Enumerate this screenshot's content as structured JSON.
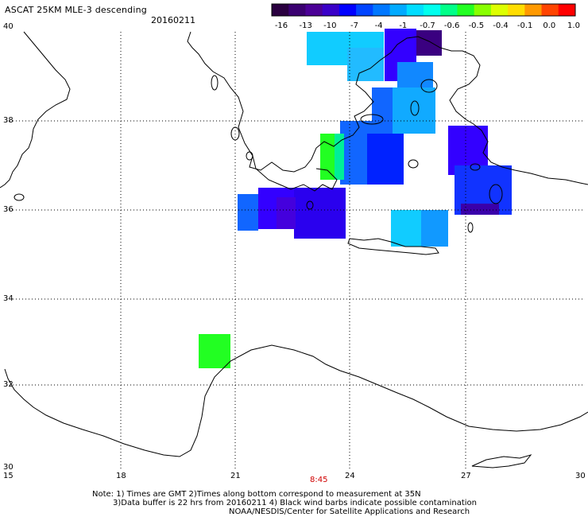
{
  "header": {
    "title": "ASCAT 25KM MLE-3 descending",
    "date": "20160211"
  },
  "colorbar": {
    "labels": [
      "-16",
      "-13",
      "-10",
      "-7",
      "-4",
      "-1",
      "-0.7",
      "-0.6",
      "-0.5",
      "-0.4",
      "-0.1",
      "0.0",
      "1.0"
    ],
    "colors": [
      "#2a0040",
      "#3a0070",
      "#4b0096",
      "#3a00c8",
      "#0000ff",
      "#0044ff",
      "#0077ff",
      "#00aaff",
      "#00ddff",
      "#00ffee",
      "#00ff88",
      "#22ff22",
      "#88ff00",
      "#ddff00",
      "#ffdd00",
      "#ff9900",
      "#ff4400",
      "#ff0000"
    ]
  },
  "axes": {
    "longitudes": [
      "15",
      "18",
      "21",
      "24",
      "27",
      "30"
    ],
    "latitudes": [
      "40",
      "38",
      "36",
      "34",
      "32",
      "30"
    ]
  },
  "time_marker": "8:45",
  "footer": {
    "line1": "Note: 1) Times are GMT 2)Times along bottom correspond to measurement at 35N",
    "line2": "3)Data buffer is 22 hrs from 20160211 4) Black wind barbs indicate possible contamination",
    "line3": "NOAA/NESDIS/Center for Satellite Applications and Research"
  },
  "colors": {
    "coastline": "#000000",
    "grid": "#000000",
    "time_marker": "#d00000"
  }
}
